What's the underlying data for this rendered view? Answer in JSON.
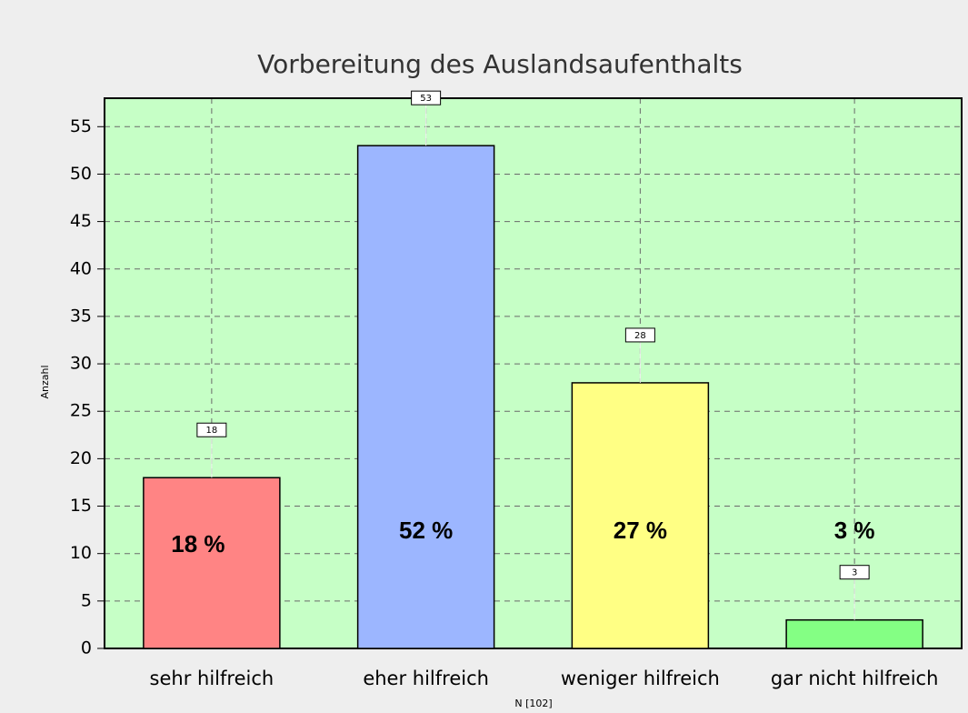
{
  "chart_data": {
    "type": "bar",
    "title": "Vorbereitung des Auslandsaufenthalts",
    "y_label": "Anzahl",
    "x_label": "N [102]",
    "categories": [
      "sehr hilfreich",
      "eher hilfreich",
      "weniger hilfreich",
      "gar nicht hilfreich"
    ],
    "values": [
      18,
      53,
      28,
      3
    ],
    "colors": [
      "#ff8484",
      "#9cb6ff",
      "#ffff84",
      "#84ff84"
    ],
    "annotations": [
      "18 %",
      "52 %",
      "27 %",
      "3 %"
    ],
    "ylim": [
      0,
      58
    ],
    "yticks": [
      0,
      5,
      10,
      15,
      20,
      25,
      30,
      35,
      40,
      45,
      50,
      55
    ],
    "grid": true
  }
}
